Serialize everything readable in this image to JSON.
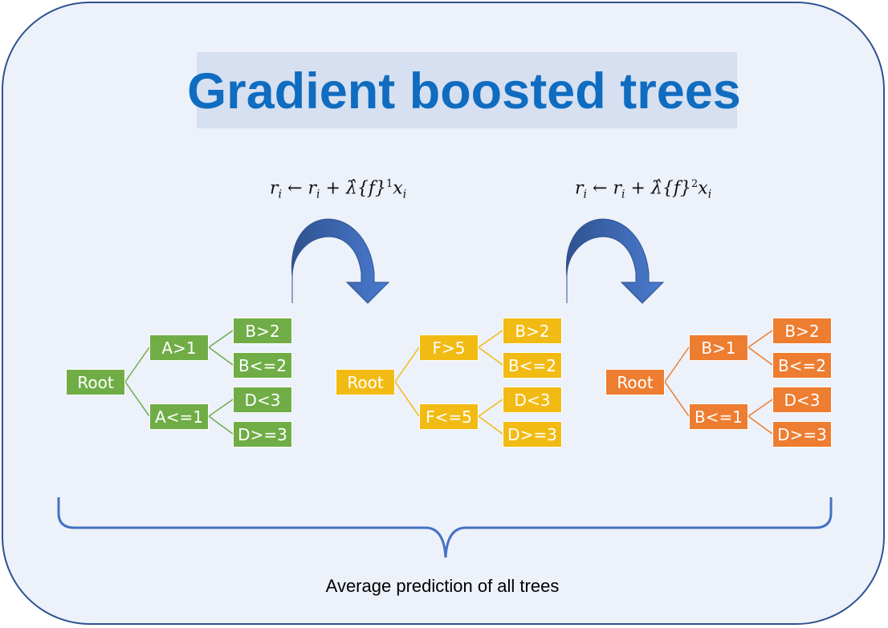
{
  "title": "Gradient boosted trees",
  "formulas": [
    {
      "r": "r",
      "sub": "i",
      "arrow": "←",
      "lambda": "λ̂",
      "f": "{f}",
      "sup": "1",
      "x": "x"
    },
    {
      "r": "r",
      "sub": "i",
      "arrow": "←",
      "lambda": "λ̂",
      "f": "{f}",
      "sup": "2",
      "x": "x"
    }
  ],
  "trees": [
    {
      "root": "Root",
      "upper": "A>1",
      "lower": "A<=1",
      "upper_leaves": [
        "B>2",
        "B<=2"
      ],
      "lower_leaves": [
        "D<3",
        "D>=3"
      ],
      "color": "#70ad47"
    },
    {
      "root": "Root",
      "upper": "F>5",
      "lower": "F<=5",
      "upper_leaves": [
        "B>2",
        "B<=2"
      ],
      "lower_leaves": [
        "D<3",
        "D>=3"
      ],
      "color": "#f2bb14"
    },
    {
      "root": "Root",
      "upper": "B>1",
      "lower": "B<=1",
      "upper_leaves": [
        "B>2",
        "B<=2"
      ],
      "lower_leaves": [
        "D<3",
        "D>=3"
      ],
      "color": "#ed7d31"
    }
  ],
  "caption": "Average prediction of all trees",
  "colors": {
    "frame": "#2f528f",
    "background": "#ecf1fa",
    "title": "#0f6cc0",
    "arrow": "#4472c4",
    "brace": "#4472c4"
  }
}
